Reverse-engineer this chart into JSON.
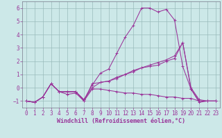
{
  "background_color": "#cce8e8",
  "grid_color": "#99bbbb",
  "line_color": "#993399",
  "marker": "+",
  "xlim": [
    -0.5,
    23.5
  ],
  "ylim": [
    -1.5,
    6.5
  ],
  "yticks": [
    -1,
    0,
    1,
    2,
    3,
    4,
    5,
    6
  ],
  "xticks": [
    0,
    1,
    2,
    3,
    4,
    5,
    6,
    7,
    8,
    9,
    10,
    11,
    12,
    13,
    14,
    15,
    16,
    17,
    18,
    19,
    20,
    21,
    22,
    23
  ],
  "xlabel": "Windchill (Refroidissement éolien,°C)",
  "series": [
    [
      0,
      1,
      2,
      3,
      4,
      5,
      6,
      7,
      8,
      9,
      10,
      11,
      12,
      13,
      14,
      15,
      16,
      17,
      18,
      19,
      20,
      21,
      22,
      23
    ],
    [
      -1.0,
      -1.1,
      -0.7,
      0.3,
      -0.3,
      -0.3,
      -0.3,
      -0.9,
      0.2,
      1.1,
      1.4,
      2.6,
      3.8,
      4.7,
      6.0,
      6.0,
      5.7,
      5.9,
      5.1,
      1.6,
      -0.1,
      -1.1,
      -1.0,
      -1.0
    ],
    [
      -1.0,
      -1.1,
      -0.7,
      0.3,
      -0.3,
      -0.3,
      -0.3,
      -0.9,
      0.0,
      0.4,
      0.5,
      0.8,
      1.0,
      1.3,
      1.5,
      1.7,
      1.9,
      2.1,
      2.4,
      3.4,
      0.0,
      -0.9,
      -1.0,
      -1.0
    ],
    [
      -1.0,
      -1.1,
      -0.7,
      0.3,
      -0.3,
      -0.5,
      -0.4,
      -1.0,
      -0.1,
      -0.1,
      -0.2,
      -0.3,
      -0.4,
      -0.4,
      -0.5,
      -0.5,
      -0.6,
      -0.7,
      -0.7,
      -0.8,
      -0.8,
      -1.0,
      -1.0,
      -1.0
    ],
    [
      -1.0,
      -1.1,
      -0.7,
      0.3,
      -0.3,
      -0.3,
      -0.3,
      -1.0,
      0.3,
      0.4,
      0.5,
      0.7,
      1.0,
      1.2,
      1.5,
      1.6,
      1.7,
      2.0,
      2.2,
      3.4,
      -0.1,
      -1.0,
      -1.0,
      -1.0
    ]
  ],
  "tick_fontsize": 5.5,
  "xlabel_fontsize": 6.0,
  "xlabel_fontfamily": "monospace",
  "linewidth": 0.75,
  "markersize": 2.5
}
